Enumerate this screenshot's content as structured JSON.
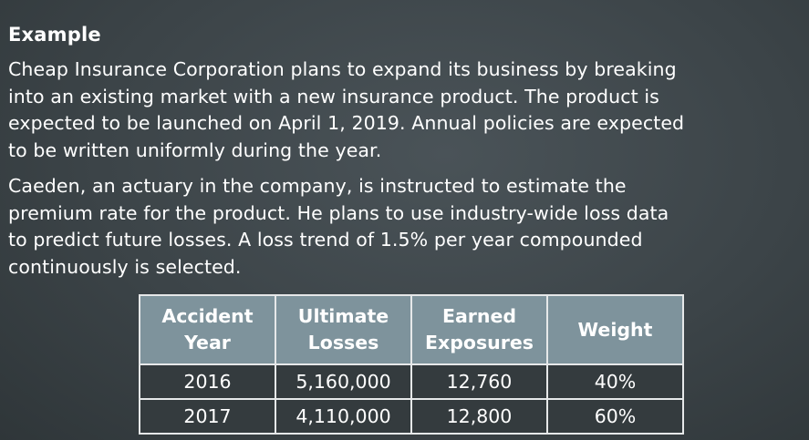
{
  "heading": "Example",
  "paragraph1": [
    "Cheap Insurance Corporation plans to expand its business by breaking",
    "into an existing market with a new insurance product. The product is",
    "expected to be launched on April 1, 2019. Annual policies are expected",
    "to be written uniformly during the year."
  ],
  "paragraph2": [
    "Caeden, an actuary in the company, is instructed to estimate the",
    "premium rate for the product. He plans to use industry-wide loss data",
    "to predict future losses. A loss trend of 1.5% per year compounded",
    "continuously is selected."
  ],
  "table": {
    "headers": [
      [
        "Accident",
        "Year"
      ],
      [
        "Ultimate",
        "Losses"
      ],
      [
        "Earned",
        "Exposures"
      ],
      [
        "Weight"
      ]
    ],
    "rows": [
      [
        "2016",
        "5,160,000",
        "12,760",
        "40%"
      ],
      [
        "2017",
        "4,110,000",
        "12,800",
        "60%"
      ]
    ]
  },
  "colors": {
    "background": "#3c4448",
    "header_fill": "#7e939c",
    "cell_fill": "#343b3e",
    "border": "#e6e8e9",
    "text": "#ffffff"
  }
}
